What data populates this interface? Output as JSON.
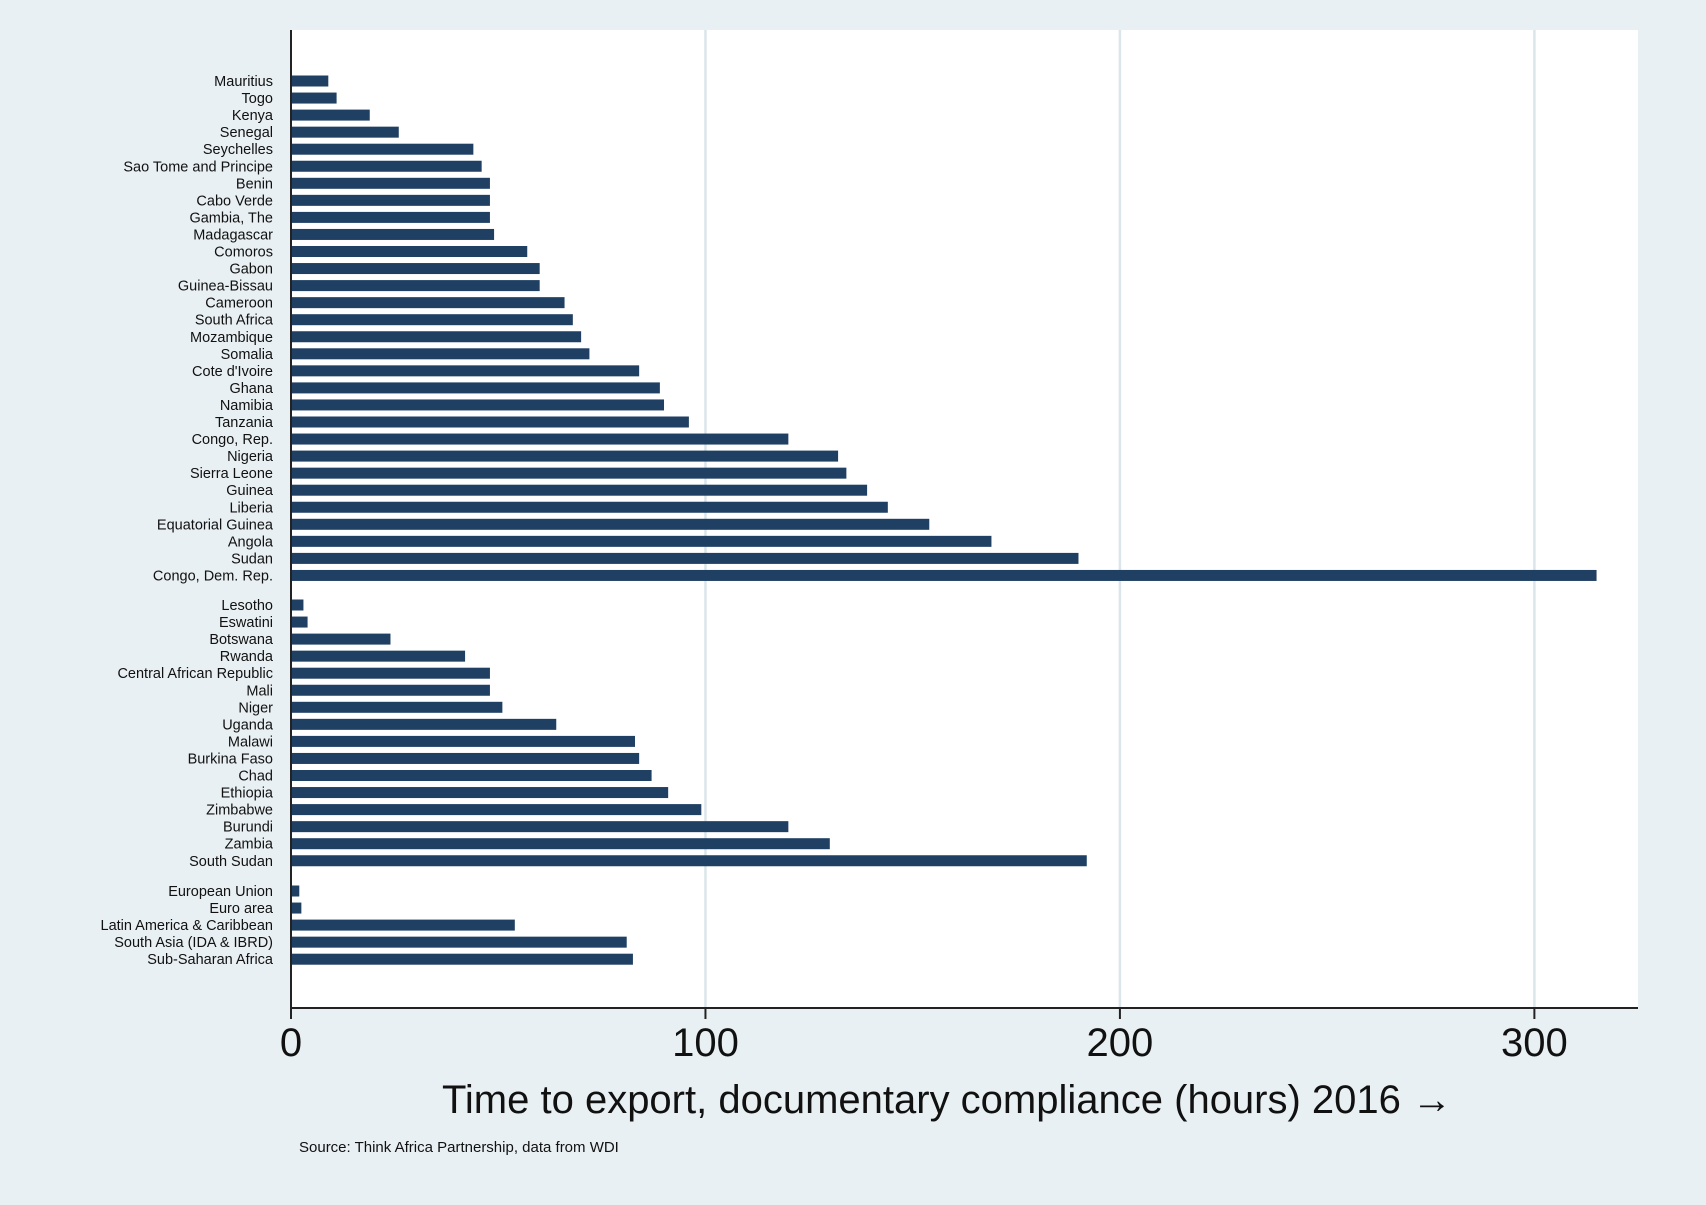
{
  "chart_data": {
    "type": "bar",
    "orientation": "horizontal",
    "xlabel": "Time to export, documentary compliance (hours) 2016 →",
    "xlim": [
      0,
      325
    ],
    "xticks": [
      0,
      100,
      200,
      300
    ],
    "grid": true,
    "bar_color": "#1f3f63",
    "source": "Source: Think Africa Partnership, data from WDI",
    "groups": [
      {
        "categories": [
          "Mauritius",
          "Togo",
          "Kenya",
          "Senegal",
          "Seychelles",
          "Sao Tome and Principe",
          "Benin",
          "Cabo Verde",
          "Gambia, The",
          "Madagascar",
          "Comoros",
          "Gabon",
          "Guinea-Bissau",
          "Cameroon",
          "South Africa",
          "Mozambique",
          "Somalia",
          "Cote d'Ivoire",
          "Ghana",
          "Namibia",
          "Tanzania",
          "Congo, Rep.",
          "Nigeria",
          "Sierra Leone",
          "Guinea",
          "Liberia",
          "Equatorial Guinea",
          "Angola",
          "Sudan",
          "Congo, Dem. Rep."
        ],
        "values": [
          9,
          11,
          19,
          26,
          44,
          46,
          48,
          48,
          48,
          49,
          57,
          60,
          60,
          66,
          68,
          70,
          72,
          84,
          89,
          90,
          96,
          120,
          132,
          134,
          139,
          144,
          154,
          169,
          190,
          315
        ]
      },
      {
        "categories": [
          "Lesotho",
          "Eswatini",
          "Botswana",
          "Rwanda",
          "Central African Republic",
          "Mali",
          "Niger",
          "Uganda",
          "Malawi",
          "Burkina Faso",
          "Chad",
          "Ethiopia",
          "Zimbabwe",
          "Burundi",
          "Zambia",
          "South Sudan"
        ],
        "values": [
          3,
          4,
          24,
          42,
          48,
          48,
          51,
          64,
          83,
          84,
          87,
          91,
          99,
          120,
          130,
          192
        ]
      },
      {
        "categories": [
          "European Union",
          "Euro area",
          "Latin America & Caribbean",
          "South Asia (IDA & IBRD)",
          "Sub-Saharan Africa"
        ],
        "values": [
          2,
          2.5,
          54,
          81,
          82.5
        ]
      }
    ]
  }
}
